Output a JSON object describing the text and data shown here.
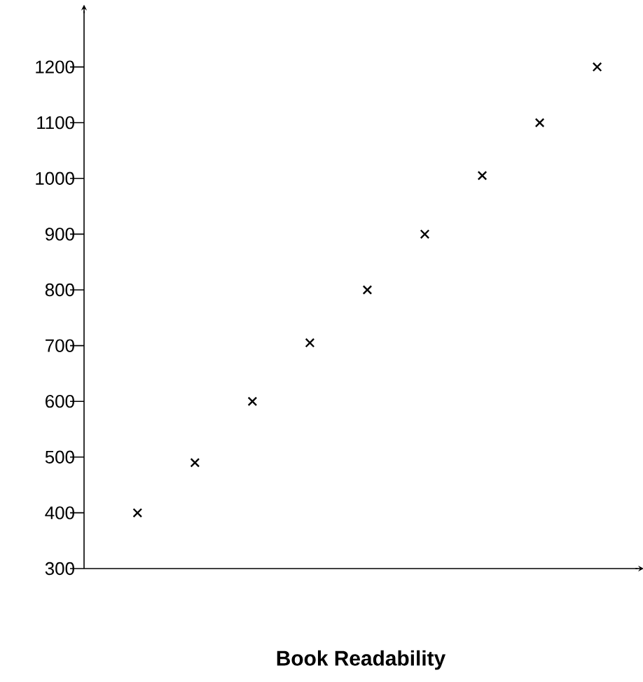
{
  "chart_data": {
    "type": "scatter",
    "xlabel": "Book Readability",
    "categories": [
      null,
      null,
      null,
      null,
      null,
      null,
      null,
      null,
      null
    ],
    "values": [
      400,
      490,
      600,
      705,
      800,
      900,
      1005,
      1100,
      1200
    ],
    "color": "#000000",
    "marker": "cross",
    "ylim": [
      300,
      1300
    ],
    "yticks": [
      300,
      400,
      500,
      600,
      700,
      800,
      900,
      1000,
      1100,
      1200
    ],
    "grid": false
  }
}
